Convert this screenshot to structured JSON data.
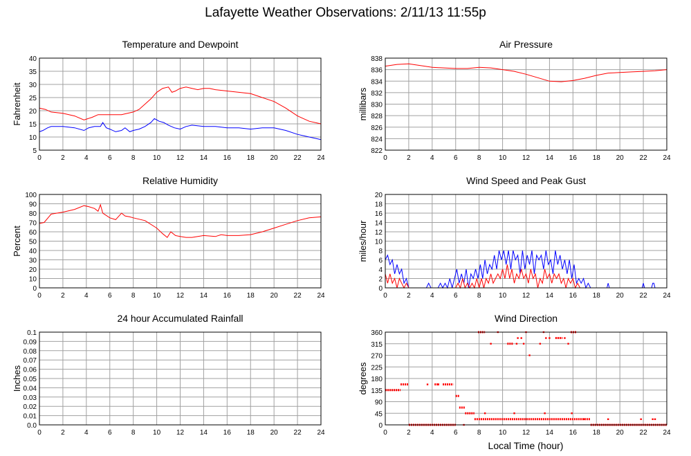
{
  "page": {
    "title": "Lafayette Weather Observations: 2/11/13 11:55p",
    "bottom_xlabel": "Local Time (hour)"
  },
  "colors": {
    "red": "#ff0000",
    "blue": "#0000ff",
    "grid": "#a0a0a0",
    "gridfine": "#d0d0d0"
  },
  "chart_data": [
    {
      "id": "temp",
      "type": "line",
      "title": "Temperature and Dewpoint",
      "ylabel": "Fahrenheit",
      "xlim": [
        0,
        24
      ],
      "ylim": [
        5,
        40
      ],
      "xticks": [
        0,
        2,
        4,
        6,
        8,
        10,
        12,
        14,
        16,
        18,
        20,
        22,
        24
      ],
      "yticks": [
        5,
        10,
        15,
        20,
        25,
        30,
        35,
        40
      ],
      "ytick_labels": [
        "5",
        "10",
        "15",
        "20",
        "25",
        "30",
        "35",
        "40"
      ],
      "series": [
        {
          "color": "red",
          "x": [
            0,
            0.5,
            1,
            2,
            3,
            3.8,
            4.5,
            5,
            6,
            7,
            7.5,
            8,
            8.5,
            9,
            9.5,
            10,
            10.5,
            11,
            11.3,
            11.6,
            12,
            12.5,
            13,
            13.5,
            14,
            14.5,
            15,
            16,
            17,
            18,
            19,
            20,
            21,
            22,
            23,
            24
          ],
          "y": [
            21,
            20.5,
            19.5,
            19,
            18,
            16.5,
            17.5,
            18.5,
            18.5,
            18.5,
            19,
            19.5,
            20.5,
            22.5,
            24.5,
            27,
            28.5,
            29,
            27,
            27.5,
            28.5,
            29,
            28.5,
            28,
            28.5,
            28.5,
            28,
            27.5,
            27,
            26.5,
            25,
            23.5,
            21,
            18,
            16,
            15
          ]
        },
        {
          "color": "blue",
          "x": [
            0,
            0.3,
            0.7,
            1,
            2,
            3,
            3.8,
            4.2,
            4.7,
            5.2,
            5.4,
            5.7,
            6,
            6.5,
            7,
            7.3,
            7.7,
            8,
            8.5,
            9,
            9.5,
            9.8,
            10.2,
            10.6,
            11,
            11.5,
            12,
            12.5,
            13,
            14,
            15,
            16,
            17,
            18,
            19,
            20,
            21,
            22,
            22.5,
            23,
            23.5,
            24
          ],
          "y": [
            12,
            12.5,
            13.5,
            14,
            14,
            13.5,
            12.5,
            13.5,
            14,
            14,
            15.5,
            13.5,
            13,
            12,
            12.5,
            13.5,
            12,
            12.5,
            13,
            14,
            15.5,
            17,
            16,
            15.5,
            14.5,
            13.5,
            13,
            14,
            14.5,
            14,
            14,
            13.5,
            13.5,
            13,
            13.5,
            13.5,
            12.5,
            11,
            10.5,
            10,
            9.5,
            9
          ]
        }
      ]
    },
    {
      "id": "pressure",
      "type": "line",
      "title": "Air Pressure",
      "ylabel": "millibars",
      "xlim": [
        0,
        24
      ],
      "ylim": [
        822,
        838
      ],
      "xticks": [
        0,
        2,
        4,
        6,
        8,
        10,
        12,
        14,
        16,
        18,
        20,
        22,
        24
      ],
      "yticks": [
        822,
        824,
        826,
        828,
        830,
        832,
        834,
        836,
        838
      ],
      "ytick_labels": [
        "822",
        "824",
        "826",
        "828",
        "830",
        "832",
        "834",
        "836",
        "838"
      ],
      "series": [
        {
          "color": "red",
          "x": [
            0,
            1,
            2,
            3,
            4,
            5,
            6,
            7,
            8,
            9,
            10,
            11,
            12,
            13,
            14,
            15,
            16,
            17,
            18,
            19,
            20,
            21,
            22,
            23,
            24
          ],
          "y": [
            836.6,
            836.9,
            837.0,
            836.7,
            836.4,
            836.3,
            836.2,
            836.2,
            836.4,
            836.3,
            836.0,
            835.7,
            835.2,
            834.6,
            834.0,
            833.9,
            834.1,
            834.5,
            835.0,
            835.4,
            835.5,
            835.6,
            835.7,
            835.8,
            836.0
          ]
        }
      ]
    },
    {
      "id": "humidity",
      "type": "line",
      "title": "Relative Humidity",
      "ylabel": "Percent",
      "xlim": [
        0,
        24
      ],
      "ylim": [
        0,
        100
      ],
      "xticks": [
        0,
        2,
        4,
        6,
        8,
        10,
        12,
        14,
        16,
        18,
        20,
        22,
        24
      ],
      "yticks": [
        0,
        10,
        20,
        30,
        40,
        50,
        60,
        70,
        80,
        90,
        100
      ],
      "ytick_labels": [
        "0",
        "10",
        "20",
        "30",
        "40",
        "50",
        "60",
        "70",
        "80",
        "90",
        "100"
      ],
      "series": [
        {
          "color": "red",
          "x": [
            0,
            0.4,
            0.8,
            1,
            2,
            3,
            3.8,
            4.2,
            4.7,
            5,
            5.2,
            5.4,
            6,
            6.5,
            7,
            7.3,
            7.7,
            8,
            9,
            10,
            10.5,
            10.9,
            11.2,
            11.6,
            12,
            12.5,
            13,
            14,
            15,
            15.5,
            16,
            17,
            18,
            19,
            20,
            21,
            22,
            23,
            24
          ],
          "y": [
            69,
            70,
            76,
            79,
            81,
            84,
            88,
            87,
            85,
            82,
            89,
            80,
            75,
            73,
            80,
            77,
            76,
            75,
            72,
            64,
            58,
            54,
            60,
            56,
            55,
            54,
            54,
            56,
            55,
            57,
            56,
            56,
            57,
            60,
            64,
            68,
            72,
            75,
            76
          ]
        }
      ]
    },
    {
      "id": "wind",
      "type": "line",
      "title": "Wind Speed and Peak Gust",
      "ylabel": "miles/hour",
      "xlim": [
        0,
        24
      ],
      "ylim": [
        0,
        20
      ],
      "xticks": [
        0,
        2,
        4,
        6,
        8,
        10,
        12,
        14,
        16,
        18,
        20,
        22,
        24
      ],
      "yticks": [
        0,
        2,
        4,
        6,
        8,
        10,
        12,
        14,
        16,
        18,
        20
      ],
      "ytick_labels": [
        "0",
        "2",
        "4",
        "6",
        "8",
        "10",
        "12",
        "14",
        "16",
        "18",
        "20"
      ],
      "series": [
        {
          "color": "blue",
          "x": [
            0,
            0.2,
            0.4,
            0.6,
            0.8,
            1.0,
            1.2,
            1.4,
            1.6,
            1.8,
            2.0,
            2.5,
            3.5,
            3.7,
            3.9,
            4.5,
            4.7,
            4.9,
            5.1,
            5.3,
            5.5,
            5.7,
            5.9,
            6.1,
            6.3,
            6.5,
            6.7,
            6.9,
            7.1,
            7.3,
            7.5,
            7.7,
            7.9,
            8.1,
            8.3,
            8.5,
            8.7,
            8.9,
            9.1,
            9.3,
            9.5,
            9.7,
            9.9,
            10.1,
            10.3,
            10.5,
            10.7,
            10.9,
            11.1,
            11.3,
            11.5,
            11.7,
            11.9,
            12.1,
            12.3,
            12.5,
            12.7,
            12.9,
            13.1,
            13.3,
            13.5,
            13.7,
            13.9,
            14.1,
            14.3,
            14.5,
            14.7,
            14.9,
            15.1,
            15.3,
            15.5,
            15.7,
            15.9,
            16.1,
            16.3,
            16.5,
            16.7,
            16.9,
            17.1,
            17.3,
            17.5,
            18.0,
            18.9,
            19.0,
            19.1,
            21.9,
            22.0,
            22.1,
            22.7,
            22.8,
            22.9,
            23.0,
            24
          ],
          "y": [
            6,
            7,
            5,
            6,
            3,
            5,
            3,
            4,
            1,
            2,
            0,
            0,
            0,
            1,
            0,
            0,
            1,
            0,
            1,
            0,
            2,
            0,
            2,
            4,
            1,
            3,
            1,
            4,
            0,
            3,
            2,
            4,
            2,
            5,
            2,
            6,
            3,
            5,
            4,
            7,
            4,
            8,
            6,
            8,
            5,
            8,
            4,
            8,
            6,
            7,
            3,
            8,
            4,
            7,
            5,
            8,
            3,
            7,
            6,
            7,
            4,
            8,
            5,
            6,
            3,
            8,
            5,
            7,
            4,
            6,
            3,
            6,
            2,
            5,
            1,
            2,
            1,
            2,
            0,
            1,
            0,
            0,
            0,
            1,
            0,
            0,
            1,
            0,
            0,
            1,
            1,
            0,
            0
          ]
        },
        {
          "color": "red",
          "x": [
            0,
            0.2,
            0.4,
            0.6,
            0.8,
            1.0,
            1.2,
            1.4,
            1.6,
            1.8,
            2.0,
            6.0,
            6.2,
            6.4,
            6.6,
            6.8,
            7.0,
            7.2,
            7.4,
            7.6,
            7.8,
            8.0,
            8.2,
            8.4,
            8.6,
            8.8,
            9.0,
            9.2,
            9.4,
            9.6,
            9.8,
            10.0,
            10.2,
            10.4,
            10.6,
            10.8,
            11.0,
            11.2,
            11.4,
            11.6,
            11.8,
            12.0,
            12.2,
            12.4,
            12.6,
            12.8,
            13.0,
            13.2,
            13.4,
            13.6,
            13.8,
            14.0,
            14.2,
            14.4,
            14.6,
            14.8,
            15.0,
            15.2,
            15.4,
            15.6,
            15.8,
            16.0,
            16.2,
            16.4,
            16.6,
            16.8,
            17.0,
            24
          ],
          "y": [
            3,
            1,
            3,
            1,
            2,
            0,
            2,
            1,
            0,
            1,
            0,
            0,
            1,
            0,
            2,
            0,
            1,
            0,
            1,
            0,
            2,
            0,
            2,
            0,
            2,
            1,
            3,
            1,
            2,
            3,
            2,
            4,
            2,
            5,
            2,
            4,
            1,
            3,
            2,
            4,
            2,
            3,
            1,
            4,
            2,
            3,
            0,
            2,
            1,
            4,
            2,
            3,
            1,
            3,
            2,
            3,
            1,
            2,
            0,
            2,
            1,
            2,
            0,
            1,
            0,
            0,
            0,
            0
          ]
        }
      ]
    },
    {
      "id": "rain",
      "type": "line",
      "title": "24 hour Accumulated Rainfall",
      "ylabel": "Inches",
      "xlim": [
        0,
        24
      ],
      "ylim": [
        0,
        0.1
      ],
      "xticks": [
        0,
        2,
        4,
        6,
        8,
        10,
        12,
        14,
        16,
        18,
        20,
        22,
        24
      ],
      "yticks": [
        0,
        0.01,
        0.02,
        0.03,
        0.04,
        0.05,
        0.06,
        0.07,
        0.08,
        0.09,
        0.1
      ],
      "ytick_labels": [
        "0.0",
        "0.01",
        "0.02",
        "0.03",
        "0.04",
        "0.05",
        "0.06",
        "0.07",
        "0.08",
        "0.09",
        "0.1"
      ],
      "series": [
        {
          "color": "red",
          "x": [
            0,
            24
          ],
          "y": [
            0,
            0
          ]
        }
      ]
    },
    {
      "id": "direction",
      "type": "scatter",
      "title": "Wind Direction",
      "ylabel": "degrees",
      "xlabel": "Local Time (hour)",
      "xlim": [
        0,
        24
      ],
      "ylim": [
        0,
        360
      ],
      "xticks": [
        0,
        2,
        4,
        6,
        8,
        10,
        12,
        14,
        16,
        18,
        20,
        22,
        24
      ],
      "yticks": [
        0,
        45,
        90,
        135,
        180,
        225,
        270,
        315,
        360
      ],
      "ytick_labels": [
        "0",
        "45",
        "90",
        "135",
        "180",
        "225",
        "270",
        "315",
        "360"
      ],
      "segments": [
        {
          "x0": 0.0,
          "x1": 1.3,
          "y": 135
        },
        {
          "x0": 1.3,
          "x1": 2.0,
          "y": 157
        },
        {
          "x0": 2.0,
          "x1": 6.0,
          "y": 0
        },
        {
          "x0": 6.0,
          "x1": 6.3,
          "y": 112
        },
        {
          "x0": 6.3,
          "x1": 6.8,
          "y": 67
        },
        {
          "x0": 6.8,
          "x1": 7.6,
          "y": 45
        },
        {
          "x0": 7.6,
          "x1": 17.5,
          "y": 22
        },
        {
          "x0": 17.5,
          "x1": 24.0,
          "y": 0
        },
        {
          "x0": 4.2,
          "x1": 4.6,
          "y": 157
        },
        {
          "x0": 4.9,
          "x1": 5.8,
          "y": 157
        },
        {
          "x0": 7.9,
          "x1": 8.5,
          "y": 360
        },
        {
          "x0": 15.8,
          "x1": 16.3,
          "y": 360
        },
        {
          "x0": 14.5,
          "x1": 15.1,
          "y": 337
        },
        {
          "x0": 10.4,
          "x1": 10.9,
          "y": 315
        }
      ],
      "points": [
        {
          "x": 3.6,
          "y": 157
        },
        {
          "x": 4.5,
          "y": 157
        },
        {
          "x": 9.0,
          "y": 315
        },
        {
          "x": 9.6,
          "y": 360
        },
        {
          "x": 11.2,
          "y": 315
        },
        {
          "x": 11.3,
          "y": 337
        },
        {
          "x": 11.6,
          "y": 337
        },
        {
          "x": 11.8,
          "y": 315
        },
        {
          "x": 12.3,
          "y": 270
        },
        {
          "x": 13.2,
          "y": 315
        },
        {
          "x": 13.5,
          "y": 360
        },
        {
          "x": 13.7,
          "y": 337
        },
        {
          "x": 14.0,
          "y": 337
        },
        {
          "x": 15.3,
          "y": 337
        },
        {
          "x": 15.6,
          "y": 315
        },
        {
          "x": 12.0,
          "y": 360
        },
        {
          "x": 8.5,
          "y": 45
        },
        {
          "x": 11.0,
          "y": 45
        },
        {
          "x": 13.6,
          "y": 45
        },
        {
          "x": 15.9,
          "y": 45
        },
        {
          "x": 19.0,
          "y": 22
        },
        {
          "x": 21.8,
          "y": 22
        },
        {
          "x": 22.8,
          "y": 22
        },
        {
          "x": 23.0,
          "y": 22
        },
        {
          "x": 6.7,
          "y": 0
        },
        {
          "x": 16.9,
          "y": 22
        }
      ]
    }
  ]
}
